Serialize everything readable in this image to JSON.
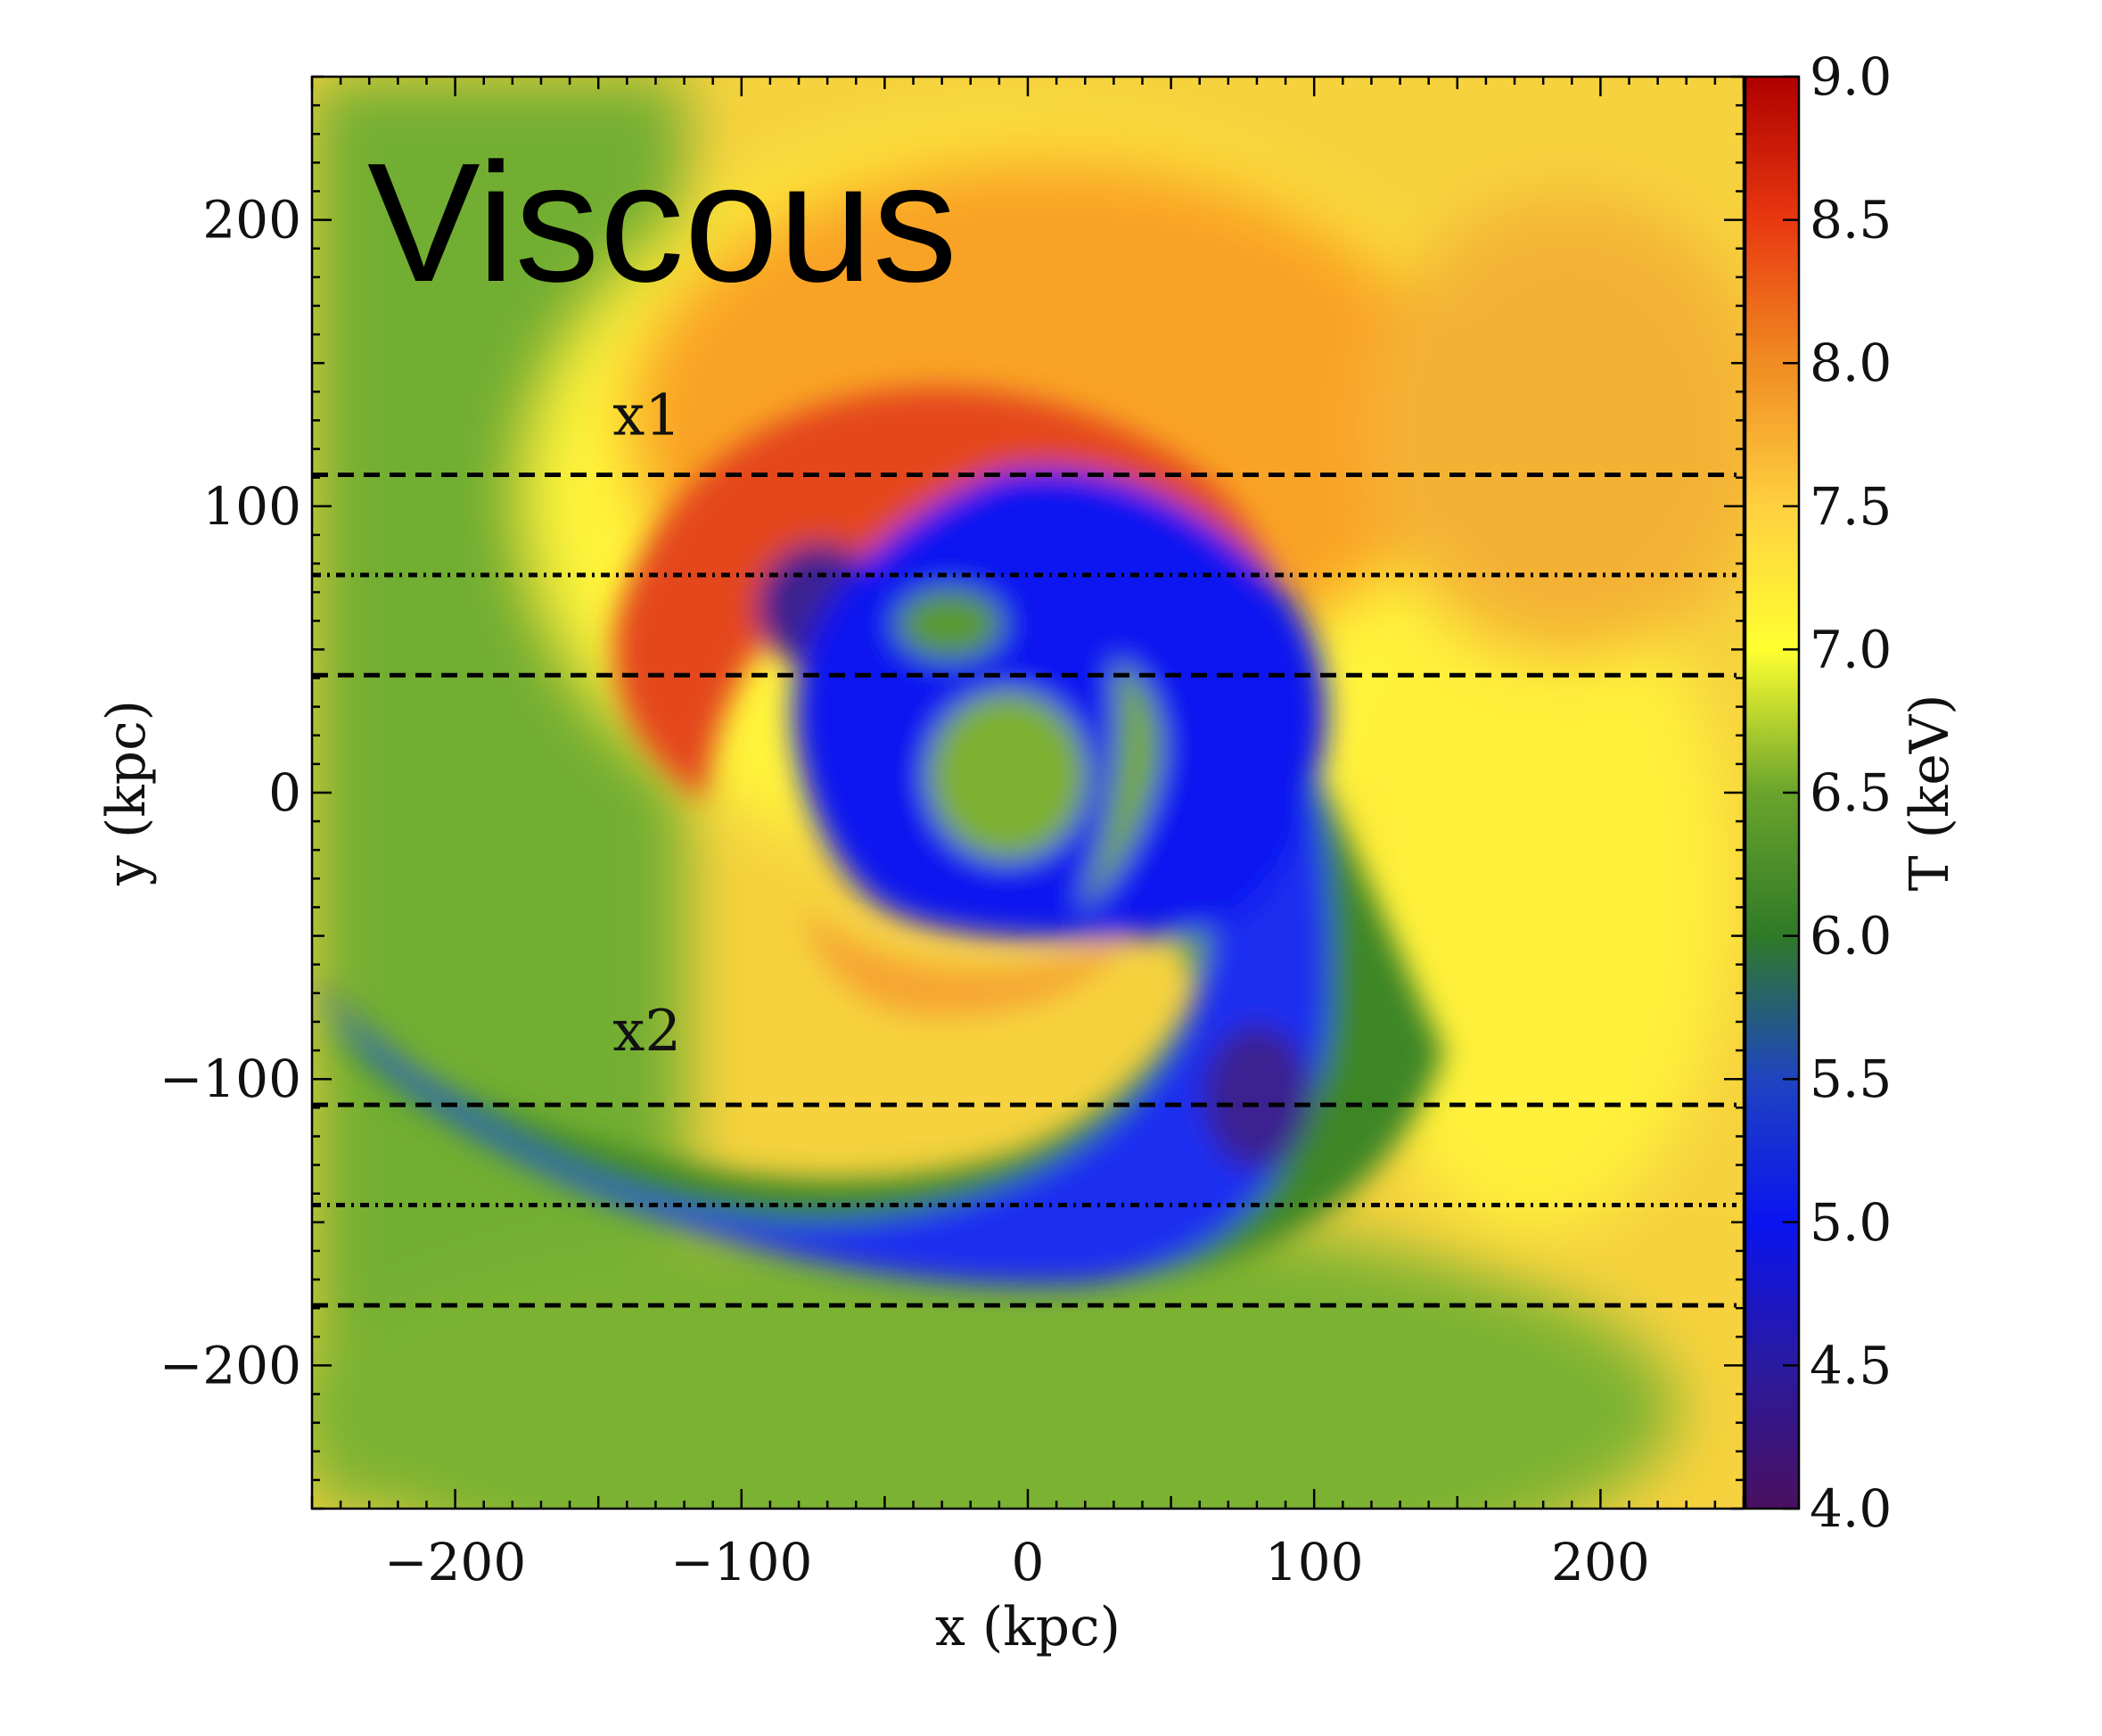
{
  "chart_data": {
    "type": "heatmap",
    "title": "Viscous",
    "xlabel": "x  (kpc)",
    "ylabel": "y  (kpc)",
    "xlim": [
      -250,
      250
    ],
    "ylim": [
      -250,
      250
    ],
    "xticks": [
      -200,
      -100,
      0,
      100,
      200
    ],
    "yticks": [
      200,
      100,
      0,
      -100,
      -200
    ],
    "xtick_labels": [
      "−200",
      "−100",
      "0",
      "100",
      "200"
    ],
    "ytick_labels": [
      "200",
      "100",
      "0",
      "−100",
      "−200"
    ],
    "colorbar": {
      "label": "T (keV)",
      "range": [
        4.0,
        9.0
      ],
      "ticks": [
        4.0,
        4.5,
        5.0,
        5.5,
        6.0,
        6.5,
        7.0,
        7.5,
        8.0,
        8.5,
        9.0
      ],
      "tick_labels": [
        "4.0",
        "4.5",
        "5.0",
        "5.5",
        "6.0",
        "6.5",
        "7.0",
        "7.5",
        "8.0",
        "8.5",
        "9.0"
      ],
      "colors": [
        "#4a1060",
        "#2a1aa0",
        "#0a14f0",
        "#1f44c0",
        "#2f7a28",
        "#6aa42c",
        "#ffff30",
        "#ffd040",
        "#f08c22",
        "#e83810",
        "#b00000"
      ]
    },
    "lines": [
      {
        "name": "x1",
        "style": "dashed",
        "y": 111
      },
      {
        "name": "x1",
        "style": "dotted",
        "y": 76
      },
      {
        "name": "x1",
        "style": "dashed",
        "y": 41
      },
      {
        "name": "x2",
        "style": "dashed",
        "y": -109
      },
      {
        "name": "x2",
        "style": "dotted",
        "y": -144
      },
      {
        "name": "x2",
        "style": "dashed",
        "y": -179
      }
    ],
    "annotations": [
      {
        "text": "x1",
        "x": -145,
        "y": 125
      },
      {
        "text": "x2",
        "x": -145,
        "y": -90
      }
    ]
  }
}
